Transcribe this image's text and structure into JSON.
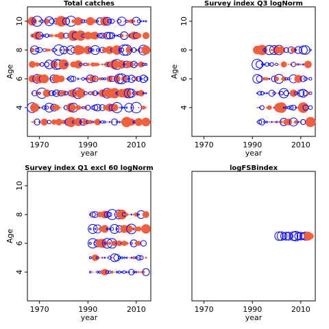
{
  "colors": {
    "positive": "#f0603f",
    "negative": "#0000ff",
    "axis": "#000000"
  },
  "chart_data": [
    {
      "type": "scatter",
      "subtype": "bubble",
      "title": "Total catches",
      "xlabel": "year",
      "ylabel": "Age",
      "xlim": [
        1965,
        2016
      ],
      "ylim": [
        2,
        11
      ],
      "x_ticks": [
        "1970",
        "1990",
        "2010"
      ],
      "y_ticks": [
        "4",
        "6",
        "8",
        "10"
      ],
      "years": [
        1967,
        2014
      ],
      "ages": [
        3,
        4,
        5,
        6,
        7,
        8,
        9,
        10
      ],
      "pattern": "mixed",
      "seed": 11
    },
    {
      "type": "scatter",
      "subtype": "bubble",
      "title": "Survey index Q3 logNorm",
      "xlabel": "year",
      "ylabel": "Age",
      "xlim": [
        1965,
        2016
      ],
      "ylim": [
        2,
        11
      ],
      "x_ticks": [
        "1970",
        "1990",
        "2010"
      ],
      "y_ticks": [
        "4",
        "6",
        "8",
        "10"
      ],
      "years": [
        1992,
        2014
      ],
      "ages": [
        3,
        4,
        5,
        6,
        7,
        8
      ],
      "pattern": "mixed",
      "seed": 23
    },
    {
      "type": "scatter",
      "subtype": "bubble",
      "title": "Survey index Q1 excl 60 logNorm",
      "xlabel": "year",
      "ylabel": "Age",
      "xlim": [
        1965,
        2016
      ],
      "ylim": [
        2,
        11
      ],
      "x_ticks": [
        "1970",
        "1990",
        "2010"
      ],
      "y_ticks": [
        "4",
        "6",
        "8",
        "10"
      ],
      "years": [
        1991,
        2014
      ],
      "ages": [
        4,
        5,
        6,
        7,
        8
      ],
      "pattern": "mixed",
      "seed": 37
    },
    {
      "type": "scatter",
      "subtype": "bubble",
      "title": "logFSBindex",
      "xlabel": "year",
      "ylabel": "",
      "xlim": [
        1965,
        2016
      ],
      "ylim": [
        2,
        11
      ],
      "x_ticks": [
        "1970",
        "1990",
        "2010"
      ],
      "y_ticks": [],
      "years": [
        2001,
        2014
      ],
      "ages": [
        6.5
      ],
      "pattern": "fsb",
      "seed": 51
    }
  ]
}
